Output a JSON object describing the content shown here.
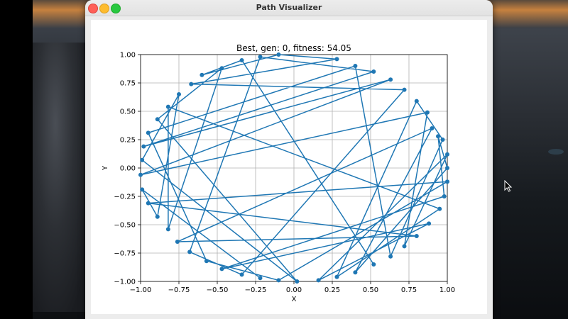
{
  "window": {
    "title": "Path Visualizer"
  },
  "chart_data": {
    "type": "line",
    "title": "Best, gen: 0, fitness: 54.05",
    "xlabel": "X",
    "ylabel": "Y",
    "xlim": [
      -1.0,
      1.0
    ],
    "ylim": [
      -1.0,
      1.0
    ],
    "grid": true,
    "color": "#1f77b4",
    "x_ticks": [
      "−1.00",
      "−0.75",
      "−0.50",
      "−0.25",
      "0.00",
      "0.25",
      "0.50",
      "0.75",
      "1.00"
    ],
    "y_ticks": [
      "−1.00",
      "−0.75",
      "−0.50",
      "−0.25",
      "0.00",
      "0.25",
      "0.50",
      "0.75",
      "1.00"
    ],
    "series": [
      {
        "points": [
          [
            -0.6,
            0.82
          ],
          [
            -0.47,
            0.88
          ],
          [
            -0.34,
            0.95
          ],
          [
            -0.22,
            0.98
          ],
          [
            -0.1,
            1.0
          ],
          [
            0.28,
            0.96
          ],
          [
            0.4,
            0.9
          ],
          [
            0.52,
            0.85
          ],
          [
            0.63,
            0.78
          ],
          [
            0.72,
            0.69
          ],
          [
            0.8,
            0.59
          ],
          [
            0.87,
            0.49
          ],
          [
            0.9,
            0.35
          ],
          [
            0.94,
            0.28
          ],
          [
            0.97,
            0.25
          ],
          [
            1.0,
            0.12
          ],
          [
            1.0,
            0.0
          ],
          [
            1.0,
            -0.12
          ],
          [
            0.98,
            -0.25
          ],
          [
            0.95,
            -0.36
          ],
          [
            0.88,
            -0.49
          ],
          [
            0.8,
            -0.6
          ],
          [
            0.72,
            -0.69
          ],
          [
            0.63,
            -0.78
          ],
          [
            0.52,
            -0.85
          ],
          [
            0.4,
            -0.92
          ],
          [
            0.28,
            -0.96
          ],
          [
            0.16,
            -0.99
          ],
          [
            0.02,
            -1.0
          ],
          [
            -0.1,
            -0.99
          ],
          [
            -0.22,
            -0.97
          ],
          [
            -0.34,
            -0.94
          ],
          [
            -0.47,
            -0.89
          ],
          [
            -0.57,
            -0.82
          ],
          [
            -0.68,
            -0.74
          ],
          [
            -0.76,
            -0.65
          ],
          [
            -0.82,
            -0.54
          ],
          [
            -0.89,
            -0.43
          ],
          [
            -0.95,
            -0.31
          ],
          [
            -0.99,
            -0.19
          ],
          [
            -1.0,
            -0.06
          ],
          [
            -0.99,
            0.07
          ],
          [
            -0.98,
            0.19
          ],
          [
            -0.95,
            0.31
          ],
          [
            -0.89,
            0.43
          ],
          [
            -0.82,
            0.54
          ],
          [
            -0.75,
            0.65
          ],
          [
            -0.67,
            0.74
          ]
        ],
        "order": [
          24,
          2,
          0,
          4,
          5,
          47,
          9,
          31,
          34,
          3,
          7,
          42,
          8,
          40,
          11,
          22,
          15,
          27,
          20,
          32,
          18,
          13,
          16,
          25,
          12,
          35,
          21,
          38,
          17,
          29,
          33,
          43,
          6,
          23,
          14,
          10,
          26,
          19,
          45,
          36,
          1,
          44,
          28,
          41,
          46,
          37,
          39,
          30
        ]
      }
    ]
  }
}
